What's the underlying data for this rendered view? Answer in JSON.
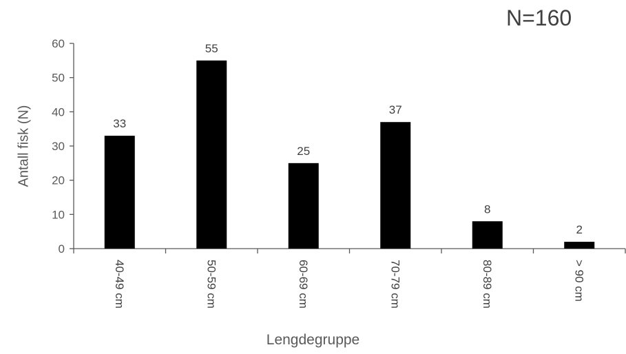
{
  "annotation": "N=160",
  "chart_data": {
    "type": "bar",
    "categories": [
      "40-49 cm",
      "50-59 cm",
      "60-69 cm",
      "70-79 cm",
      "80-89 cm",
      "> 90 cm"
    ],
    "values": [
      33,
      55,
      25,
      37,
      8,
      2
    ],
    "data_labels": [
      "33",
      "55",
      "25",
      "37",
      "8",
      "2"
    ],
    "title": "",
    "xlabel": "Lengdegruppe",
    "ylabel": "Antall fisk (N)",
    "ylim": [
      0,
      60
    ],
    "yticks": [
      "0",
      "10",
      "20",
      "30",
      "40",
      "50",
      "60"
    ],
    "grid": false,
    "bar_color": "#000000"
  }
}
